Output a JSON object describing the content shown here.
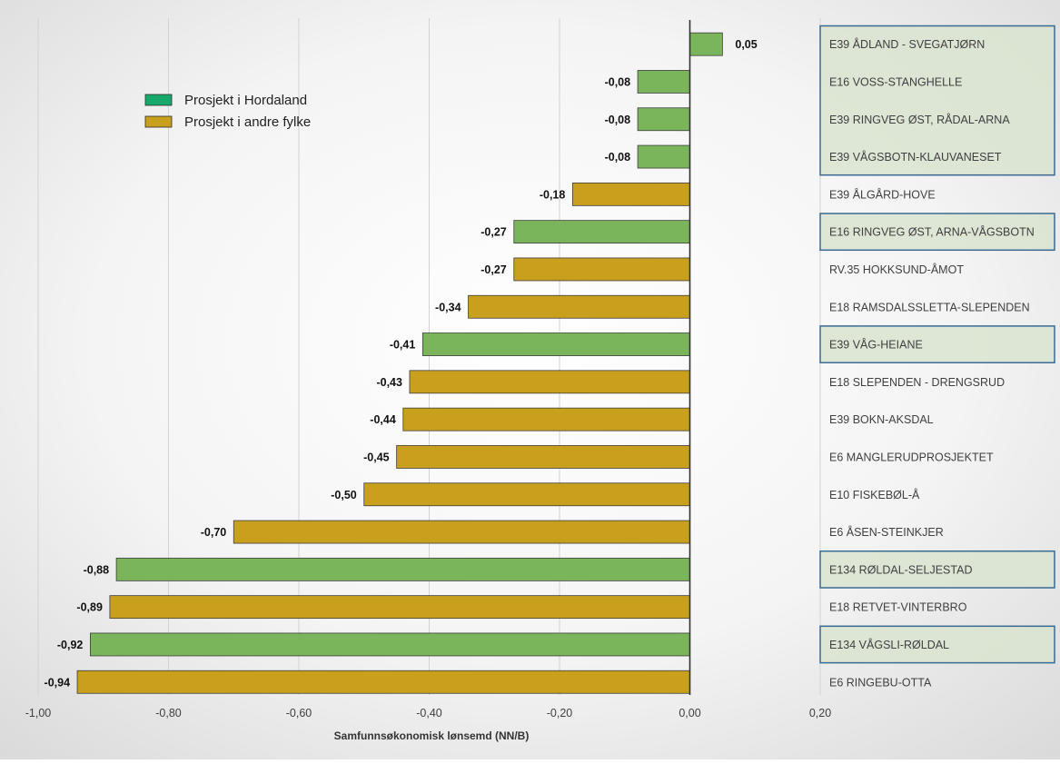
{
  "chart_data": {
    "type": "bar",
    "orientation": "horizontal",
    "title": "",
    "xlabel": "Samfunnsøkonomisk lønsemd (NN/B)",
    "ylabel": "",
    "xlim": [
      -1.0,
      0.2
    ],
    "x_ticks": [
      "-1,00",
      "-0,80",
      "-0,60",
      "-0,40",
      "-0,20",
      "0,00",
      "0,20"
    ],
    "x_tick_values": [
      -1.0,
      -0.8,
      -0.6,
      -0.4,
      -0.2,
      0.0,
      0.2
    ],
    "grid": "vertical",
    "legend_position": "top-left",
    "categories": [
      "E39 ÅDLAND - SVEGATJØRN",
      "E16 VOSS-STANGHELLE",
      "E39 RINGVEG ØST, RÅDAL-ARNA",
      "E39 VÅGSBOTN-KLAUVANESET",
      "E39 ÅLGÅRD-HOVE",
      "E16 RINGVEG ØST, ARNA-VÅGSBOTN",
      "RV.35 HOKKSUND-ÅMOT",
      "E18 RAMSDALSSLETTA-SLEPENDEN",
      "E39 VÅG-HEIANE",
      "E18 SLEPENDEN - DRENGSRUD",
      "E39 BOKN-AKSDAL",
      "E6 MANGLERUDPROSJEKTET",
      "E10 FISKEBØL-Å",
      "E6 ÅSEN-STEINKJER",
      "E134 RØLDAL-SELJESTAD",
      "E18 RETVET-VINTERBRO",
      "E134 VÅGSLI-RØLDAL",
      "E6 RINGEBU-OTTA"
    ],
    "values": [
      0.05,
      -0.08,
      -0.08,
      -0.08,
      -0.18,
      -0.27,
      -0.27,
      -0.34,
      -0.41,
      -0.43,
      -0.44,
      -0.45,
      -0.5,
      -0.7,
      -0.88,
      -0.89,
      -0.92,
      -0.94
    ],
    "value_labels": [
      "0,05",
      "-0,08",
      "-0,08",
      "-0,08",
      "-0,18",
      "-0,27",
      "-0,27",
      "-0,34",
      "-0,41",
      "-0,43",
      "-0,44",
      "-0,45",
      "-0,50",
      "-0,70",
      "-0,88",
      "-0,89",
      "-0,92",
      "-0,94"
    ],
    "groups": [
      "hordaland",
      "hordaland",
      "hordaland",
      "hordaland",
      "other",
      "hordaland",
      "other",
      "other",
      "hordaland",
      "other",
      "other",
      "other",
      "other",
      "other",
      "hordaland",
      "other",
      "hordaland",
      "other"
    ],
    "series": [
      {
        "key": "hordaland",
        "name": "Prosjekt i Hordaland",
        "color": "#7ab55c",
        "legend_color": "#17a96b"
      },
      {
        "key": "other",
        "name": "Prosjekt i andre fylke",
        "color": "#c8a01e",
        "legend_color": "#c8a01e"
      }
    ],
    "highlight_boxes": [
      {
        "from": 0,
        "to": 3
      },
      {
        "from": 5,
        "to": 5
      },
      {
        "from": 8,
        "to": 8
      },
      {
        "from": 14,
        "to": 14
      },
      {
        "from": 16,
        "to": 16
      }
    ],
    "colors": {
      "highlight_border": "#3a6a93",
      "highlight_fill": "#d9e3cf",
      "axis": "#333333",
      "grid": "#d3d3d3",
      "category_text": "#404040"
    }
  }
}
